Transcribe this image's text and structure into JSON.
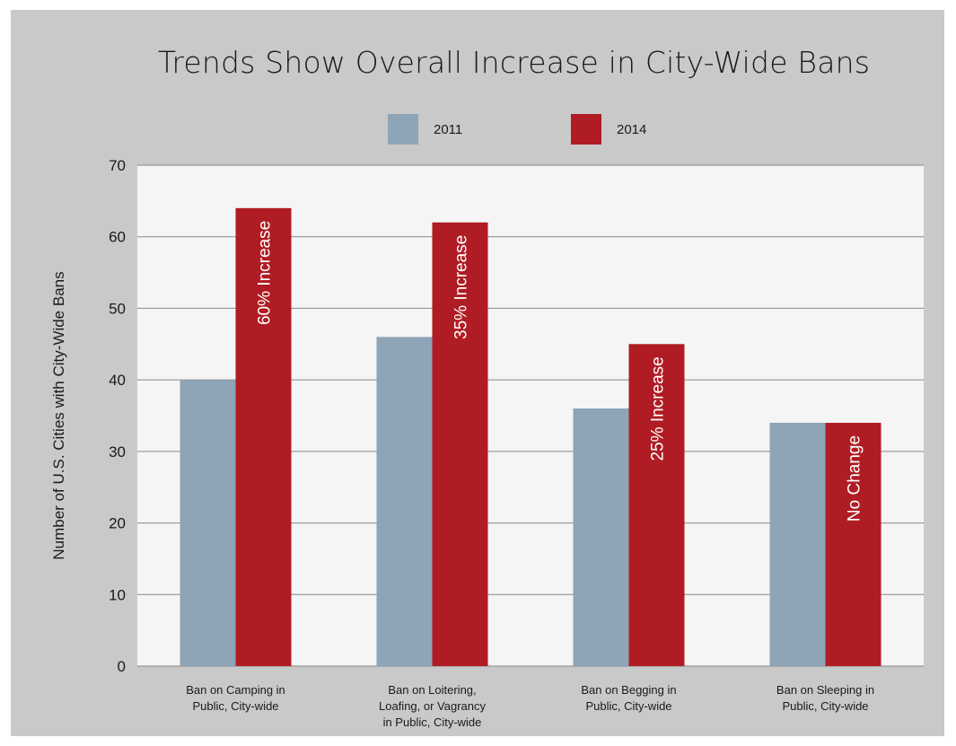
{
  "chart_data": {
    "type": "bar",
    "title": "Trends Show Overall Increase in City-Wide Bans",
    "xlabel": "",
    "ylabel": "Number of U.S. Cities with City-Wide Bans",
    "ylim": [
      0,
      70
    ],
    "yticks": [
      0,
      10,
      20,
      30,
      40,
      50,
      60,
      70
    ],
    "grid": true,
    "legend_position": "top-center",
    "categories": [
      [
        "Ban on Camping in",
        "Public, City-wide"
      ],
      [
        "Ban on Loitering,",
        "Loafing, or Vagrancy",
        "in Public, City-wide"
      ],
      [
        "Ban on Begging in",
        "Public, City-wide"
      ],
      [
        "Ban on Sleeping in",
        "Public, City-wide"
      ]
    ],
    "series": [
      {
        "name": "2011",
        "color": "#8ea4b7",
        "values": [
          40,
          46,
          36,
          34
        ]
      },
      {
        "name": "2014",
        "color": "#b01c23",
        "values": [
          64,
          62,
          45,
          34
        ]
      }
    ],
    "bar_labels": [
      "60% Increase",
      "35% Increase",
      "25% Increase",
      "No Change"
    ]
  },
  "colors": {
    "frame": "#c9c9c9",
    "plot_area": "#f5f5f5",
    "gridline": "#888888"
  }
}
